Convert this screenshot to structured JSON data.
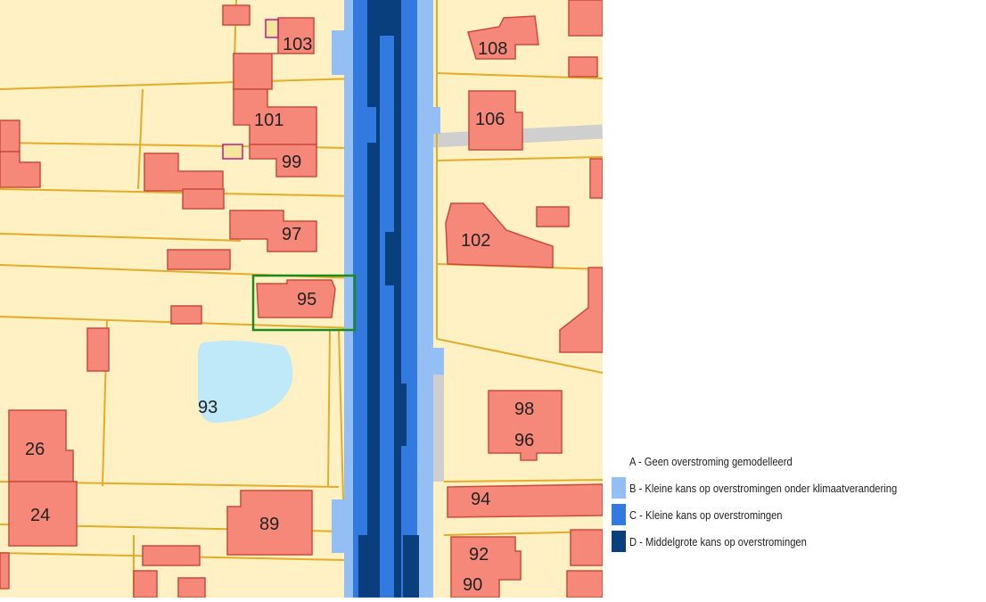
{
  "map": {
    "house_numbers": [
      {
        "id": "103",
        "label": "103"
      },
      {
        "id": "101",
        "label": "101"
      },
      {
        "id": "99",
        "label": "99"
      },
      {
        "id": "97",
        "label": "97"
      },
      {
        "id": "95",
        "label": "95"
      },
      {
        "id": "93",
        "label": "93"
      },
      {
        "id": "89",
        "label": "89"
      },
      {
        "id": "26",
        "label": "26"
      },
      {
        "id": "24",
        "label": "24"
      },
      {
        "id": "108",
        "label": "108"
      },
      {
        "id": "106",
        "label": "106"
      },
      {
        "id": "102",
        "label": "102"
      },
      {
        "id": "98",
        "label": "98"
      },
      {
        "id": "96",
        "label": "96"
      },
      {
        "id": "94",
        "label": "94"
      },
      {
        "id": "92",
        "label": "92"
      },
      {
        "id": "90",
        "label": "90"
      }
    ],
    "selected_parcel": "95"
  },
  "legend": {
    "items": [
      {
        "key": "A",
        "label": "A - Geen overstroming gemodelleerd",
        "color": "#ffffff"
      },
      {
        "key": "B",
        "label": "B - Kleine kans op overstromingen onder klimaatverandering",
        "color": "#93bff5"
      },
      {
        "key": "C",
        "label": "C - Kleine kans op overstromingen",
        "color": "#3279e0"
      },
      {
        "key": "D",
        "label": "D - Middelgrote kans op overstromingen",
        "color": "#0a3f7e"
      }
    ]
  },
  "colors": {
    "parcel_fill": "#fff1c4",
    "parcel_border": "#e2ad2a",
    "building_fill": "#f58878",
    "building_border": "#cc4a3c",
    "road": "#c8c8c8",
    "pond": "#bfe8f8",
    "selection": "#1e8a1e"
  }
}
